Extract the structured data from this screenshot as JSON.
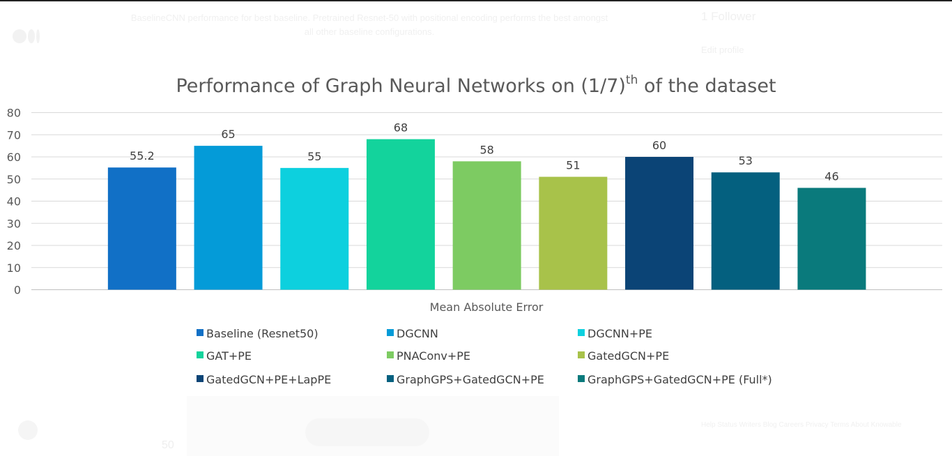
{
  "page": {
    "caption": "BaselineCNN performance for best baseline. Pretrained Resnet-50 with positional encoding performs the best amongst all other baseline configurations.",
    "followers": "1 Follower",
    "edit_profile": "Edit profile",
    "footer_links": "Help Status Writers Blog Careers Privacy Terms About Knowable",
    "ghost_number": "50"
  },
  "chart_data": {
    "type": "bar",
    "title": "Performance of Graph Neural Networks on (1/7)",
    "title_superscript": "th",
    "title_suffix": " of the dataset",
    "xlabel": "Mean Absolute Error",
    "ylabel": "",
    "ylim": [
      0,
      80
    ],
    "yticks": [
      0,
      10,
      20,
      30,
      40,
      50,
      60,
      70,
      80
    ],
    "grid": true,
    "legend_position": "bottom",
    "series": [
      {
        "name": "Baseline (Resnet50)",
        "value": 55.2,
        "color": "#1170C6"
      },
      {
        "name": "DGCNN",
        "value": 65,
        "color": "#049BD8"
      },
      {
        "name": "DGCNN+PE",
        "value": 55,
        "color": "#0DD0DE"
      },
      {
        "name": "GAT+PE",
        "value": 68,
        "color": "#13D39C"
      },
      {
        "name": "PNAConv+PE",
        "value": 58,
        "color": "#7DCB62"
      },
      {
        "name": "GatedGCN+PE",
        "value": 51,
        "color": "#A8C24A"
      },
      {
        "name": "GatedGCN+PE+LapPE",
        "value": 60,
        "color": "#0B4476"
      },
      {
        "name": "GraphGPS+GatedGCN+PE",
        "value": 53,
        "color": "#04607F"
      },
      {
        "name": "GraphGPS+GatedGCN+PE (Full*)",
        "value": 46,
        "color": "#0A7A7C"
      }
    ],
    "data_labels": [
      "55.2",
      "65",
      "55",
      "68",
      "58",
      "51",
      "60",
      "53",
      "46"
    ]
  }
}
